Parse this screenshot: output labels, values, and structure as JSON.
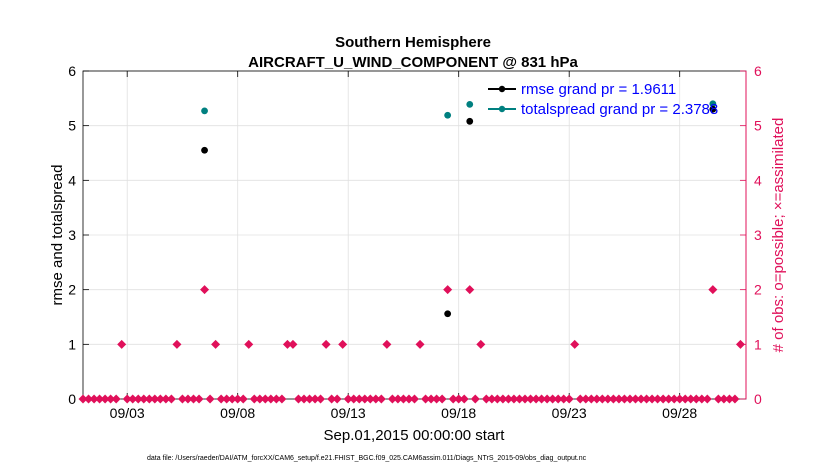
{
  "chart_data": {
    "type": "scatter",
    "title": "Southern Hemisphere",
    "subtitle": "AIRCRAFT_U_WIND_COMPONENT @ 831 hPa",
    "xlabel": "Sep.01,2015 00:00:00 start",
    "ylabel": "rmse and totalspread",
    "y2label": "# of obs: o=possible; ×=assimilated",
    "xlim": [
      1,
      31
    ],
    "ylim": [
      0,
      6
    ],
    "y2lim": [
      0,
      6
    ],
    "x_ticks": [
      3,
      8,
      13,
      18,
      23,
      28
    ],
    "x_tick_labels": [
      "09/03",
      "09/08",
      "09/13",
      "09/18",
      "09/23",
      "09/28"
    ],
    "y_ticks": [
      0,
      1,
      2,
      3,
      4,
      5,
      6
    ],
    "y_tick_labels": [
      "0",
      "1",
      "2",
      "3",
      "4",
      "5",
      "6"
    ],
    "y2_ticks": [
      0,
      1,
      2,
      3,
      4,
      5,
      6
    ],
    "y2_tick_labels": [
      "0",
      "1",
      "2",
      "3",
      "4",
      "5",
      "6"
    ],
    "grid": true,
    "legend_position": "top-right",
    "series": [
      {
        "name": "rmse grand pr = 1.9611",
        "color": "#000000",
        "axis": "left",
        "marker": "dot",
        "points": [
          [
            6.5,
            4.55
          ],
          [
            17.5,
            1.56
          ],
          [
            18.5,
            5.08
          ],
          [
            29.5,
            5.3
          ]
        ]
      },
      {
        "name": "totalspread grand pr = 2.3788",
        "color": "#008080",
        "axis": "left",
        "marker": "dot",
        "points": [
          [
            6.5,
            5.27
          ],
          [
            17.5,
            5.19
          ],
          [
            18.5,
            5.39
          ],
          [
            29.5,
            5.4
          ]
        ]
      },
      {
        "name": "# of obs possible / assimilated",
        "color": "#e0105a",
        "axis": "right",
        "marker": "diamond",
        "points": [
          [
            1.0,
            0
          ],
          [
            1.25,
            0
          ],
          [
            1.5,
            0
          ],
          [
            1.75,
            0
          ],
          [
            2.0,
            0
          ],
          [
            2.25,
            0
          ],
          [
            2.5,
            0
          ],
          [
            2.75,
            1
          ],
          [
            3.0,
            0
          ],
          [
            3.25,
            0
          ],
          [
            3.5,
            0
          ],
          [
            3.75,
            0
          ],
          [
            4.0,
            0
          ],
          [
            4.25,
            0
          ],
          [
            4.5,
            0
          ],
          [
            4.75,
            0
          ],
          [
            5.0,
            0
          ],
          [
            5.25,
            1
          ],
          [
            5.5,
            0
          ],
          [
            5.75,
            0
          ],
          [
            6.0,
            0
          ],
          [
            6.25,
            0
          ],
          [
            6.5,
            2
          ],
          [
            6.75,
            0
          ],
          [
            7.0,
            1
          ],
          [
            7.25,
            0
          ],
          [
            7.5,
            0
          ],
          [
            7.75,
            0
          ],
          [
            8.0,
            0
          ],
          [
            8.25,
            0
          ],
          [
            8.5,
            1
          ],
          [
            8.75,
            0
          ],
          [
            9.0,
            0
          ],
          [
            9.25,
            0
          ],
          [
            9.5,
            0
          ],
          [
            9.75,
            0
          ],
          [
            10.0,
            0
          ],
          [
            10.25,
            1
          ],
          [
            10.5,
            1
          ],
          [
            10.75,
            0
          ],
          [
            11.0,
            0
          ],
          [
            11.25,
            0
          ],
          [
            11.5,
            0
          ],
          [
            11.75,
            0
          ],
          [
            12.0,
            1
          ],
          [
            12.25,
            0
          ],
          [
            12.5,
            0
          ],
          [
            12.75,
            1
          ],
          [
            13.0,
            0
          ],
          [
            13.25,
            0
          ],
          [
            13.5,
            0
          ],
          [
            13.75,
            0
          ],
          [
            14.0,
            0
          ],
          [
            14.25,
            0
          ],
          [
            14.5,
            0
          ],
          [
            14.75,
            1
          ],
          [
            15.0,
            0
          ],
          [
            15.25,
            0
          ],
          [
            15.5,
            0
          ],
          [
            15.75,
            0
          ],
          [
            16.0,
            0
          ],
          [
            16.25,
            1
          ],
          [
            16.5,
            0
          ],
          [
            16.75,
            0
          ],
          [
            17.0,
            0
          ],
          [
            17.25,
            0
          ],
          [
            17.5,
            2
          ],
          [
            17.75,
            0
          ],
          [
            18.0,
            0
          ],
          [
            18.25,
            0
          ],
          [
            18.5,
            2
          ],
          [
            18.75,
            0
          ],
          [
            19.0,
            1
          ],
          [
            19.25,
            0
          ],
          [
            19.5,
            0
          ],
          [
            19.75,
            0
          ],
          [
            20.0,
            0
          ],
          [
            20.25,
            0
          ],
          [
            20.5,
            0
          ],
          [
            20.75,
            0
          ],
          [
            21.0,
            0
          ],
          [
            21.25,
            0
          ],
          [
            21.5,
            0
          ],
          [
            21.75,
            0
          ],
          [
            22.0,
            0
          ],
          [
            22.25,
            0
          ],
          [
            22.5,
            0
          ],
          [
            22.75,
            0
          ],
          [
            23.0,
            0
          ],
          [
            23.25,
            1
          ],
          [
            23.5,
            0
          ],
          [
            23.75,
            0
          ],
          [
            24.0,
            0
          ],
          [
            24.25,
            0
          ],
          [
            24.5,
            0
          ],
          [
            24.75,
            0
          ],
          [
            25.0,
            0
          ],
          [
            25.25,
            0
          ],
          [
            25.5,
            0
          ],
          [
            25.75,
            0
          ],
          [
            26.0,
            0
          ],
          [
            26.25,
            0
          ],
          [
            26.5,
            0
          ],
          [
            26.75,
            0
          ],
          [
            27.0,
            0
          ],
          [
            27.25,
            0
          ],
          [
            27.5,
            0
          ],
          [
            27.75,
            0
          ],
          [
            28.0,
            0
          ],
          [
            28.25,
            0
          ],
          [
            28.5,
            0
          ],
          [
            28.75,
            0
          ],
          [
            29.0,
            0
          ],
          [
            29.25,
            0
          ],
          [
            29.5,
            2
          ],
          [
            29.75,
            0
          ],
          [
            30.0,
            0
          ],
          [
            30.25,
            0
          ],
          [
            30.5,
            0
          ],
          [
            30.75,
            1
          ]
        ]
      }
    ],
    "footnote": "data file: /Users/raeder/DAI/ATM_forcXX/CAM6_setup/f.e21.FHIST_BGC.f09_025.CAM6assim.011/Diags_NTrS_2015-09/obs_diag_output.nc"
  },
  "colors": {
    "axis": "#000000",
    "right_axis": "#e0105a",
    "grid": "#e0e0e0",
    "legend_text": "#0000ff"
  }
}
